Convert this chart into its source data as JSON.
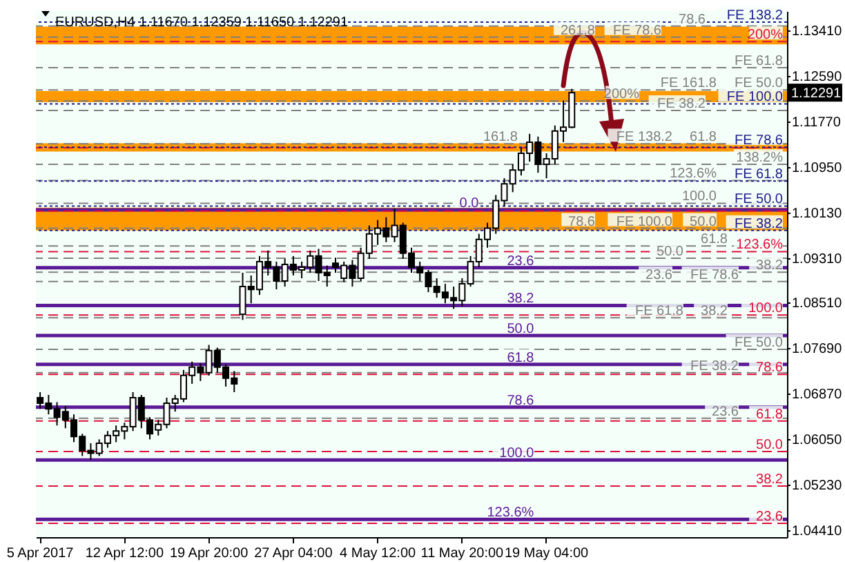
{
  "chart_data": {
    "type": "candlestick",
    "title": "EURUSD,H4  1.11670 1.12359 1.11650 1.12291",
    "categories": [
      "5 Apr 2017",
      null,
      null,
      null,
      null,
      null,
      null,
      null,
      null,
      null,
      "12 Apr 12:00",
      null,
      null,
      null,
      null,
      null,
      null,
      null,
      null,
      null,
      "19 Apr 20:00",
      null,
      null,
      null,
      null,
      null,
      null,
      null,
      null,
      null,
      "27 Apr 04:00",
      null,
      null,
      null,
      null,
      null,
      null,
      null,
      null,
      null,
      "4 May 12:00",
      null,
      null,
      null,
      null,
      null,
      null,
      null,
      null,
      null,
      "11 May 20:00",
      null,
      null,
      null,
      null,
      null,
      null,
      null,
      null,
      null,
      "19 May 04:00",
      null,
      null,
      null,
      null,
      null,
      null,
      null,
      null,
      null,
      null,
      null,
      null,
      null,
      null,
      null,
      null,
      null,
      null,
      null,
      null,
      null,
      null,
      null,
      null,
      null,
      null,
      null,
      null
    ],
    "ohlc": [
      [
        1.068,
        1.069,
        1.066,
        1.067
      ],
      [
        1.067,
        1.0685,
        1.065,
        1.066
      ],
      [
        1.066,
        1.0672,
        1.063,
        1.0645
      ],
      [
        1.0655,
        1.0665,
        1.0625,
        1.064
      ],
      [
        1.064,
        1.065,
        1.06,
        1.061
      ],
      [
        1.061,
        1.0615,
        1.0575,
        1.0585
      ],
      [
        1.0585,
        1.0598,
        1.0568,
        1.058
      ],
      [
        1.058,
        1.0605,
        1.0575,
        1.0598
      ],
      [
        1.0598,
        1.062,
        1.059,
        1.0612
      ],
      [
        1.0612,
        1.063,
        1.06,
        1.062
      ],
      [
        1.062,
        1.0635,
        1.0605,
        1.0628
      ],
      [
        1.0628,
        1.069,
        1.062,
        1.068
      ],
      [
        1.068,
        1.0685,
        1.0625,
        1.064
      ],
      [
        1.064,
        1.0645,
        1.0605,
        1.0615
      ],
      [
        1.0622,
        1.064,
        1.0612,
        1.0632
      ],
      [
        1.0632,
        1.068,
        1.0625,
        1.067
      ],
      [
        1.067,
        1.0685,
        1.0655,
        1.0678
      ],
      [
        1.0678,
        1.073,
        1.0672,
        1.072
      ],
      [
        1.072,
        1.0745,
        1.0705,
        1.0735
      ],
      [
        1.0735,
        1.0742,
        1.071,
        1.0725
      ],
      [
        1.0725,
        1.0775,
        1.072,
        1.0765
      ],
      [
        1.0765,
        1.077,
        1.0725,
        1.0735
      ],
      [
        1.0735,
        1.074,
        1.07,
        1.0715
      ],
      [
        1.0715,
        1.0728,
        1.069,
        1.0705
      ],
      [
        1.083,
        1.0905,
        1.082,
        1.088
      ],
      [
        1.088,
        1.09,
        1.085,
        1.0875
      ],
      [
        1.0875,
        1.0935,
        1.0865,
        1.0925
      ],
      [
        1.0925,
        1.0945,
        1.09,
        1.0915
      ],
      [
        1.0915,
        1.0925,
        1.0875,
        1.089
      ],
      [
        1.089,
        1.093,
        1.088,
        1.092
      ],
      [
        1.092,
        1.0935,
        1.09,
        1.091
      ],
      [
        1.091,
        1.0925,
        1.0895,
        1.0915
      ],
      [
        1.0915,
        1.0945,
        1.0905,
        1.0935
      ],
      [
        1.0935,
        1.0948,
        1.089,
        1.0905
      ],
      [
        1.0905,
        1.0918,
        1.088,
        1.09
      ],
      [
        1.0922,
        1.0932,
        1.0905,
        1.0915
      ],
      [
        1.0895,
        1.0925,
        1.0888,
        1.0918
      ],
      [
        1.0918,
        1.0928,
        1.088,
        1.0895
      ],
      [
        1.0895,
        1.095,
        1.089,
        1.094
      ],
      [
        1.094,
        1.099,
        1.093,
        1.0975
      ],
      [
        1.0975,
        1.1,
        1.0955,
        1.0985
      ],
      [
        1.0985,
        1.1005,
        1.096,
        1.097
      ],
      [
        1.097,
        1.102,
        1.096,
        1.099
      ],
      [
        1.099,
        1.0995,
        1.093,
        1.094
      ],
      [
        1.094,
        1.095,
        1.0905,
        1.0915
      ],
      [
        1.0915,
        1.0925,
        1.089,
        1.0905
      ],
      [
        1.0905,
        1.091,
        1.087,
        1.088
      ],
      [
        1.088,
        1.0895,
        1.086,
        1.087
      ],
      [
        1.087,
        1.0885,
        1.085,
        1.086
      ],
      [
        1.086,
        1.088,
        1.084,
        1.0855
      ],
      [
        1.0855,
        1.0895,
        1.0845,
        1.0885
      ],
      [
        1.0885,
        1.0935,
        1.088,
        1.0925
      ],
      [
        1.0925,
        1.0975,
        1.0915,
        1.0965
      ],
      [
        1.0965,
        1.0995,
        1.095,
        1.0985
      ],
      [
        1.0985,
        1.1045,
        1.0975,
        1.1035
      ],
      [
        1.1035,
        1.1075,
        1.1025,
        1.1065
      ],
      [
        1.1065,
        1.11,
        1.105,
        1.109
      ],
      [
        1.109,
        1.113,
        1.108,
        1.112
      ],
      [
        1.112,
        1.1155,
        1.1105,
        1.114
      ],
      [
        1.114,
        1.115,
        1.1085,
        1.11
      ],
      [
        1.11,
        1.112,
        1.1075,
        1.111
      ],
      [
        1.111,
        1.117,
        1.11,
        1.116
      ],
      [
        1.116,
        1.1215,
        1.114,
        1.1167
      ],
      [
        1.1167,
        1.12359,
        1.1165,
        1.12291
      ],
      null,
      null,
      null,
      null,
      null,
      null,
      null,
      null,
      null,
      null,
      null,
      null,
      null,
      null,
      null,
      null,
      null,
      null,
      null,
      null,
      null,
      null,
      null,
      null,
      null
    ],
    "ylim": [
      1.0429,
      1.1376
    ],
    "yticks": [
      {
        "value": 1.0441,
        "label": "1.04410"
      },
      {
        "value": 1.0523,
        "label": "1.05230"
      },
      {
        "value": 1.0605,
        "label": "1.06050"
      },
      {
        "value": 1.0687,
        "label": "1.06870"
      },
      {
        "value": 1.0769,
        "label": "1.07690"
      },
      {
        "value": 1.0851,
        "label": "1.08510"
      },
      {
        "value": 1.0931,
        "label": "1.09310"
      },
      {
        "value": 1.1013,
        "label": "1.10130"
      },
      {
        "value": 1.1095,
        "label": "1.10950"
      },
      {
        "value": 1.1177,
        "label": "1.11770"
      },
      {
        "value": 1.1259,
        "label": "1.12590"
      },
      {
        "value": 1.1341,
        "label": "1.13410"
      }
    ],
    "bands": [
      {
        "axis": "y",
        "from": 1.1316,
        "to": 1.1348,
        "color": "#ff9900"
      },
      {
        "axis": "y",
        "from": 1.1212,
        "to": 1.1232,
        "color": "#ff9900"
      },
      {
        "axis": "y",
        "from": 1.1123,
        "to": 1.1138,
        "color": "#ff9900"
      },
      {
        "axis": "y",
        "from": 1.0981,
        "to": 1.1022,
        "color": "#ff9900"
      }
    ],
    "ref_lines": [
      {
        "axis": "y",
        "value": 1.1321,
        "color": "#e0103c",
        "line_style": "dashed"
      },
      {
        "axis": "y",
        "value": 1.113,
        "color": "#e0103c",
        "line_style": "dashed"
      },
      {
        "axis": "y",
        "value": 1.1016,
        "color": "#e0103c",
        "line_style": "dashed"
      },
      {
        "axis": "y",
        "value": 1.0943,
        "color": "#e0103c",
        "line_style": "dashed"
      },
      {
        "axis": "y",
        "value": 1.0829,
        "color": "#e0103c",
        "line_style": "dashed"
      },
      {
        "axis": "y",
        "value": 1.0722,
        "color": "#e0103c",
        "line_style": "dashed"
      },
      {
        "axis": "y",
        "value": 1.0638,
        "color": "#e0103c",
        "line_style": "dashed"
      },
      {
        "axis": "y",
        "value": 1.0583,
        "color": "#e0103c",
        "line_style": "dashed"
      },
      {
        "axis": "y",
        "value": 1.0521,
        "color": "#e0103c",
        "line_style": "dashed"
      },
      {
        "axis": "y",
        "value": 1.0454,
        "color": "#e0103c",
        "line_style": "dashed"
      },
      {
        "axis": "y",
        "value": 1.1356,
        "color": "#1c1c8c",
        "line_style": "dotted"
      },
      {
        "axis": "y",
        "value": 1.1209,
        "color": "#1c1c8c",
        "line_style": "dotted"
      },
      {
        "axis": "y",
        "value": 1.1131,
        "color": "#1c1c8c",
        "line_style": "dotted"
      },
      {
        "axis": "y",
        "value": 1.107,
        "color": "#1c1c8c",
        "line_style": "dotted"
      },
      {
        "axis": "y",
        "value": 1.1025,
        "color": "#1c1c8c",
        "line_style": "dotted"
      },
      {
        "axis": "y",
        "value": 1.0981,
        "color": "#1c1c8c",
        "line_style": "dotted"
      },
      {
        "axis": "y",
        "value": 1.1018,
        "color": "#5b1a96",
        "line_style": "solid"
      },
      {
        "axis": "y",
        "value": 1.0914,
        "color": "#5b1a96",
        "line_style": "solid"
      },
      {
        "axis": "y",
        "value": 1.0846,
        "color": "#5b1a96",
        "line_style": "solid"
      },
      {
        "axis": "y",
        "value": 1.0792,
        "color": "#5b1a96",
        "line_style": "solid"
      },
      {
        "axis": "y",
        "value": 1.074,
        "color": "#5b1a96",
        "line_style": "solid"
      },
      {
        "axis": "y",
        "value": 1.0663,
        "color": "#5b1a96",
        "line_style": "solid"
      },
      {
        "axis": "y",
        "value": 1.0568,
        "color": "#5b1a96",
        "line_style": "solid"
      },
      {
        "axis": "y",
        "value": 1.0461,
        "color": "#5b1a96",
        "line_style": "solid"
      },
      {
        "axis": "y",
        "value": 1.1349,
        "color": "#808080",
        "line_style": "dashed"
      },
      {
        "axis": "y",
        "value": 1.1329,
        "color": "#808080",
        "line_style": "dashed"
      },
      {
        "axis": "y",
        "value": 1.1274,
        "color": "#808080",
        "line_style": "dashed"
      },
      {
        "axis": "y",
        "value": 1.1234,
        "color": "#808080",
        "line_style": "dashed"
      },
      {
        "axis": "y",
        "value": 1.1214,
        "color": "#808080",
        "line_style": "dashed"
      },
      {
        "axis": "y",
        "value": 1.1197,
        "color": "#808080",
        "line_style": "dashed"
      },
      {
        "axis": "y",
        "value": 1.1137,
        "color": "#808080",
        "line_style": "dashed"
      },
      {
        "axis": "y",
        "value": 1.11,
        "color": "#808080",
        "line_style": "dashed"
      },
      {
        "axis": "y",
        "value": 1.1071,
        "color": "#808080",
        "line_style": "dashed"
      },
      {
        "axis": "y",
        "value": 1.103,
        "color": "#808080",
        "line_style": "dashed"
      },
      {
        "axis": "y",
        "value": 1.0985,
        "color": "#808080",
        "line_style": "dashed"
      },
      {
        "axis": "y",
        "value": 1.0953,
        "color": "#808080",
        "line_style": "dashed"
      },
      {
        "axis": "y",
        "value": 1.0931,
        "color": "#808080",
        "line_style": "dashed"
      },
      {
        "axis": "y",
        "value": 1.0906,
        "color": "#808080",
        "line_style": "dashed"
      },
      {
        "axis": "y",
        "value": 1.0889,
        "color": "#808080",
        "line_style": "dashed"
      },
      {
        "axis": "y",
        "value": 1.0824,
        "color": "#808080",
        "line_style": "dashed"
      },
      {
        "axis": "y",
        "value": 1.0767,
        "color": "#808080",
        "line_style": "dashed"
      },
      {
        "axis": "y",
        "value": 1.0725,
        "color": "#808080",
        "line_style": "dashed"
      },
      {
        "axis": "y",
        "value": 1.0643,
        "color": "#808080",
        "line_style": "dashed"
      }
    ],
    "annotations": [
      {
        "text": "FE 138.2",
        "y": 1.1356
      },
      {
        "text": "200%",
        "y": 1.1321
      },
      {
        "text": "FE 100.0",
        "y": 1.1209
      },
      {
        "text": "FE 78.6",
        "y": 1.1131
      },
      {
        "text": "FE 61.8",
        "y": 1.107
      },
      {
        "text": "FE 50.0",
        "y": 1.1025
      },
      {
        "text": "FE 38.2",
        "y": 1.0981
      },
      {
        "text": "123.6%",
        "y": 1.0943
      },
      {
        "text": "100.0",
        "y": 1.0829
      },
      {
        "text": "78.6",
        "y": 1.0722
      },
      {
        "text": "61.8",
        "y": 1.0638
      },
      {
        "text": "50.0",
        "y": 1.0583
      },
      {
        "text": "38.2",
        "y": 1.0521
      },
      {
        "text": "23.6",
        "y": 1.0454
      },
      {
        "text": "0.0",
        "y": 1.1018
      },
      {
        "text": "23.6",
        "y": 1.0914
      },
      {
        "text": "38.2",
        "y": 1.0846
      },
      {
        "text": "50.0",
        "y": 1.0792
      },
      {
        "text": "61.8",
        "y": 1.074
      },
      {
        "text": "78.6",
        "y": 1.0663
      },
      {
        "text": "100.0",
        "y": 1.0568
      },
      {
        "text": "123.6%",
        "y": 1.0461
      },
      {
        "text": "78.6",
        "y": 1.1349
      },
      {
        "text": "FE 78.6",
        "y": 1.1329
      },
      {
        "text": "261.8",
        "y": 1.1329
      },
      {
        "text": "FE 61.8",
        "y": 1.1274
      },
      {
        "text": "FE 50.0",
        "y": 1.1234
      },
      {
        "text": "FE 161.8",
        "y": 1.1234
      },
      {
        "text": "200%",
        "y": 1.1214
      },
      {
        "text": "FE 38.2",
        "y": 1.1197
      },
      {
        "text": "61.8",
        "y": 1.1137
      },
      {
        "text": "FE 138.2",
        "y": 1.1137
      },
      {
        "text": "161.8",
        "y": 1.1137
      },
      {
        "text": "138.2%",
        "y": 1.11
      },
      {
        "text": "123.6%",
        "y": 1.1071
      },
      {
        "text": "100.0",
        "y": 1.103
      },
      {
        "text": "50.0",
        "y": 1.0985
      },
      {
        "text": "FE 100.0",
        "y": 1.0985
      },
      {
        "text": "78.6",
        "y": 1.0985
      },
      {
        "text": "61.8",
        "y": 1.0953
      },
      {
        "text": "50.0",
        "y": 1.0931
      },
      {
        "text": "38.2",
        "y": 1.0906
      },
      {
        "text": "FE 78.6",
        "y": 1.0889
      },
      {
        "text": "23.6",
        "y": 1.0889
      },
      {
        "text": "38.2",
        "y": 1.0824
      },
      {
        "text": "FE 61.8",
        "y": 1.0824
      },
      {
        "text": "FE 50.0",
        "y": 1.0767
      },
      {
        "text": "FE 38.2",
        "y": 1.0725
      },
      {
        "text": "23.6",
        "y": 1.0643
      },
      {
        "text": "1.12291",
        "y": 1.12291
      }
    ]
  }
}
